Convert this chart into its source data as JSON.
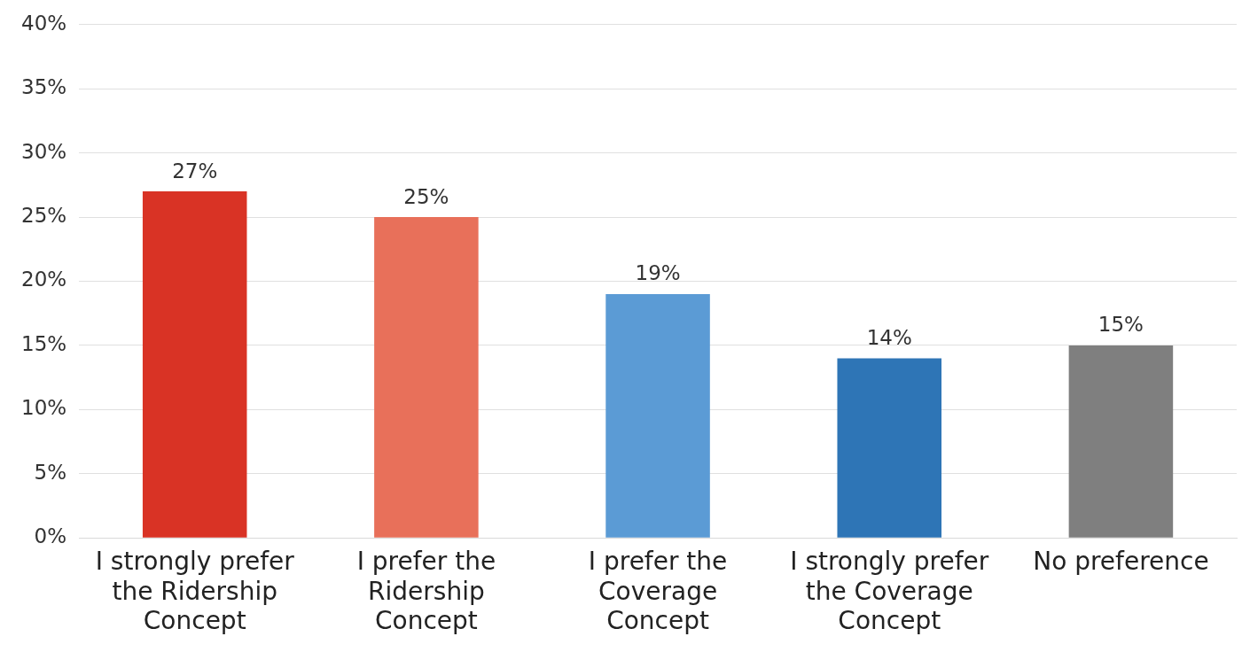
{
  "chart_data": {
    "type": "bar",
    "categories": [
      "I strongly prefer the Ridership Concept",
      "I prefer the Ridership Concept",
      "I prefer the Coverage Concept",
      "I strongly prefer the Coverage Concept",
      "No preference"
    ],
    "values": [
      27,
      25,
      19,
      14,
      15
    ],
    "colors": [
      "#d93325",
      "#e8705a",
      "#5b9bd5",
      "#2e75b6",
      "#7f7f7f"
    ],
    "value_labels": [
      "27%",
      "25%",
      "19%",
      "14%",
      "15%"
    ],
    "ylim": [
      0,
      40
    ],
    "yticks": [
      {
        "value": 0,
        "label": "0%"
      },
      {
        "value": 5,
        "label": "5%"
      },
      {
        "value": 10,
        "label": "10%"
      },
      {
        "value": 15,
        "label": "15%"
      },
      {
        "value": 20,
        "label": "20%"
      },
      {
        "value": 25,
        "label": "25%"
      },
      {
        "value": 30,
        "label": "30%"
      },
      {
        "value": 35,
        "label": "35%"
      },
      {
        "value": 40,
        "label": "40%"
      }
    ],
    "grid": "y"
  }
}
